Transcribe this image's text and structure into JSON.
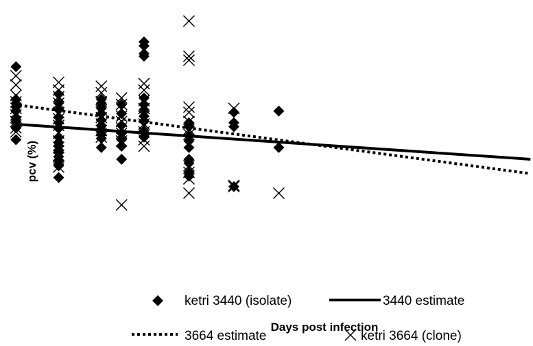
{
  "chart_data": {
    "type": "scatter",
    "xlabel": "Days post infection",
    "ylabel": "pcv (%)",
    "xlim": [
      0,
      10
    ],
    "ylim": [
      0,
      100
    ],
    "grid": false,
    "legend": "bottom",
    "series": [
      {
        "name": "ketri 3440 (isolate)",
        "kind": "points",
        "marker": "diamond",
        "color": "#000000",
        "x": [
          0.05,
          0.05,
          0.05,
          0.05,
          0.05,
          0.05,
          0.05,
          0.05,
          0.05,
          1.0,
          1.0,
          1.0,
          1.0,
          1.0,
          1.0,
          1.0,
          1.0,
          1.0,
          1.0,
          1.0,
          1.0,
          1.0,
          1.0,
          1.0,
          1.0,
          1.95,
          1.95,
          1.95,
          1.95,
          1.95,
          1.95,
          1.95,
          1.95,
          1.95,
          1.95,
          2.4,
          2.4,
          2.4,
          2.4,
          2.4,
          2.4,
          2.4,
          2.9,
          2.9,
          2.9,
          2.9,
          2.9,
          2.9,
          2.9,
          2.9,
          2.9,
          2.9,
          2.9,
          3.9,
          3.9,
          3.9,
          3.9,
          3.9,
          3.9,
          3.9,
          3.9,
          3.9,
          4.9,
          4.9,
          4.9,
          4.9,
          5.9,
          5.9
        ],
        "y": [
          80.5,
          68,
          66.5,
          65,
          63.5,
          61,
          59.5,
          57,
          52.5,
          70,
          66.5,
          64,
          61,
          59,
          57,
          53.5,
          51.5,
          50,
          48.5,
          47.5,
          46,
          44.5,
          43,
          42.5,
          38,
          68,
          66.5,
          64.5,
          62.5,
          60,
          58,
          56,
          54.5,
          53,
          49.5,
          66,
          62.5,
          58,
          55,
          52.5,
          50,
          45,
          90,
          88.5,
          85.5,
          84.5,
          68.5,
          66,
          64,
          61.5,
          59.5,
          56,
          53.5,
          59,
          57.5,
          54,
          52,
          49.5,
          45,
          43.5,
          40,
          38.5,
          63,
          59,
          57.5,
          34.5,
          63.5,
          49.5
        ]
      },
      {
        "name": "ketri 3664 (clone)",
        "kind": "points",
        "marker": "x",
        "color": "#000000",
        "x": [
          0.05,
          0.05,
          0.05,
          0.05,
          0.05,
          0.05,
          0.05,
          0.05,
          0.05,
          1.0,
          1.0,
          1.0,
          1.0,
          1.0,
          1.0,
          1.0,
          1.0,
          1.0,
          1.0,
          1.0,
          1.0,
          1.95,
          1.95,
          1.95,
          1.95,
          1.95,
          1.95,
          1.95,
          1.95,
          2.4,
          2.4,
          2.4,
          2.4,
          2.4,
          2.4,
          2.4,
          2.4,
          2.9,
          2.9,
          2.9,
          2.9,
          2.9,
          2.9,
          2.9,
          2.9,
          2.9,
          3.9,
          3.9,
          3.9,
          3.9,
          3.9,
          3.9,
          3.9,
          3.9,
          3.9,
          3.9,
          3.9,
          3.9,
          4.9,
          4.9,
          4.9,
          5.9
        ],
        "y": [
          77,
          73.5,
          69.5,
          67,
          64.5,
          62,
          59.5,
          57,
          55.5,
          74.5,
          71.5,
          69,
          66.5,
          63,
          60.5,
          58,
          55,
          52,
          49.5,
          46.5,
          42,
          73,
          70.5,
          67,
          64,
          61,
          58.5,
          56,
          53.5,
          68.5,
          66,
          61.5,
          59.5,
          57,
          55,
          52,
          27.5,
          74,
          71.5,
          67.5,
          64.5,
          61.5,
          58.5,
          55.5,
          52.5,
          50,
          98,
          84.5,
          83,
          65,
          63,
          59.5,
          56.5,
          54.5,
          42.5,
          40,
          37.5,
          32,
          64.5,
          35,
          34.5,
          32
        ]
      },
      {
        "name": "3440 estimate",
        "kind": "line",
        "dash": "solid",
        "color": "#000000",
        "x": [
          0,
          11.5
        ],
        "y": [
          58.5,
          45
        ]
      },
      {
        "name": "3664 estimate",
        "kind": "line",
        "dash": "dotted",
        "color": "#000000",
        "x": [
          0,
          11.5
        ],
        "y": [
          66,
          39.5
        ]
      }
    ]
  }
}
